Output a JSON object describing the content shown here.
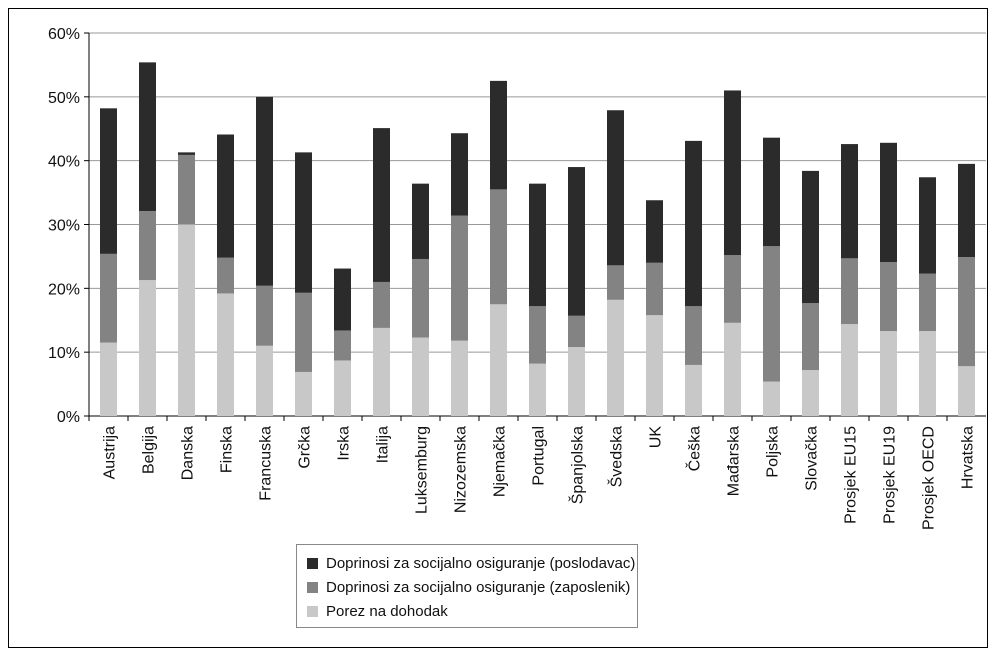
{
  "chart_data": {
    "type": "bar",
    "stacked": true,
    "categories": [
      "Austrija",
      "Belgija",
      "Danska",
      "Finska",
      "Francuska",
      "Grčka",
      "Irska",
      "Italija",
      "Luksemburg",
      "Nizozemska",
      "Njemačka",
      "Portugal",
      "Španjolska",
      "Švedska",
      "UK",
      "Češka",
      "Mađarska",
      "Poljska",
      "Slovačka",
      "Prosjek EU15",
      "Prosjek EU19",
      "Prosjek OECD",
      "Hrvatska"
    ],
    "series": [
      {
        "name": "Porez na dohodak",
        "color": "#c8c8c8",
        "values": [
          11.5,
          21.3,
          30.0,
          19.2,
          11.0,
          6.9,
          8.7,
          13.8,
          12.3,
          11.8,
          17.5,
          8.2,
          10.8,
          18.2,
          15.8,
          8.0,
          14.6,
          5.4,
          7.2,
          14.4,
          13.3,
          13.3,
          7.8
        ]
      },
      {
        "name": "Doprinosi za socijalno osiguranje (zaposlenik)",
        "color": "#838383",
        "values": [
          13.9,
          10.8,
          10.9,
          5.6,
          9.4,
          12.4,
          4.7,
          7.2,
          12.3,
          19.6,
          18.0,
          9.0,
          4.9,
          5.4,
          8.2,
          9.2,
          10.6,
          21.2,
          10.5,
          10.3,
          10.8,
          9.0,
          17.1
        ]
      },
      {
        "name": "Doprinosi za socijalno osiguranje (poslodavac)",
        "color": "#2b2b2b",
        "values": [
          22.8,
          23.3,
          0.4,
          19.3,
          29.6,
          22.0,
          9.7,
          24.1,
          11.8,
          12.9,
          17.0,
          19.2,
          23.3,
          24.3,
          9.8,
          25.9,
          25.8,
          17.0,
          20.7,
          17.9,
          18.7,
          15.1,
          14.6
        ]
      }
    ],
    "ylim": [
      0,
      60
    ],
    "yticks": [
      "0%",
      "10%",
      "20%",
      "30%",
      "40%",
      "50%",
      "60%"
    ],
    "grid": true,
    "legend_position": "bottom"
  }
}
